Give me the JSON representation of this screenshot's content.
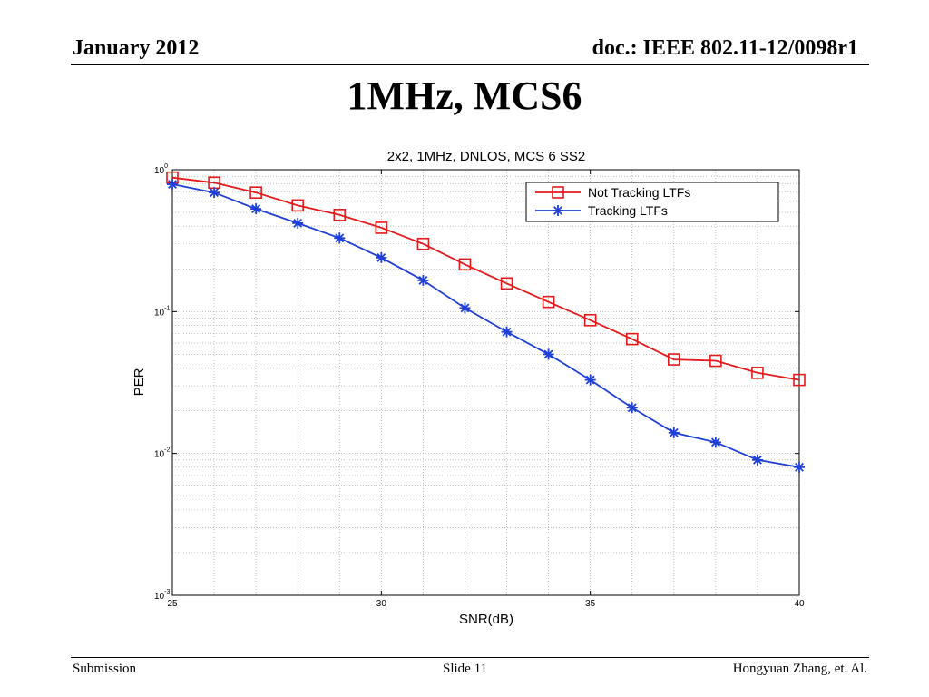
{
  "header": {
    "date": "January 2012",
    "doc": "doc.: IEEE 802.11-12/0098r1"
  },
  "slide": {
    "title": "1MHz, MCS6"
  },
  "footer": {
    "left": "Submission",
    "center": "Slide 11",
    "right": "Hongyuan Zhang, et. Al."
  },
  "chart_data": {
    "type": "line",
    "title": "2x2, 1MHz, DNLOS, MCS 6 SS2",
    "xlabel": "SNR(dB)",
    "ylabel": "PER",
    "xlim": [
      25,
      40
    ],
    "ylim": [
      0.001,
      1
    ],
    "yscale": "log",
    "grid": true,
    "legend_position": "top-right",
    "x_ticks": [
      "25",
      "30",
      "35",
      "40"
    ],
    "y_ticks": [
      {
        "base": "10",
        "exp": "0"
      },
      {
        "base": "10",
        "exp": "-1"
      },
      {
        "base": "10",
        "exp": "-2"
      },
      {
        "base": "10",
        "exp": "-3"
      }
    ],
    "x": [
      25,
      26,
      27,
      28,
      29,
      30,
      31,
      32,
      33,
      34,
      35,
      36,
      37,
      38,
      39,
      40
    ],
    "series": [
      {
        "name": "Not Tracking LTFs",
        "color": "#e41a1c",
        "marker": "square",
        "values": [
          0.88,
          0.81,
          0.69,
          0.56,
          0.48,
          0.39,
          0.3,
          0.215,
          0.158,
          0.117,
          0.087,
          0.064,
          0.046,
          0.045,
          0.037,
          0.033
        ]
      },
      {
        "name": "Tracking LTFs",
        "color": "#1f3fd6",
        "marker": "asterisk",
        "values": [
          0.79,
          0.69,
          0.53,
          0.42,
          0.33,
          0.24,
          0.166,
          0.106,
          0.072,
          0.05,
          0.033,
          0.021,
          0.014,
          0.012,
          0.009,
          0.008
        ]
      }
    ]
  }
}
